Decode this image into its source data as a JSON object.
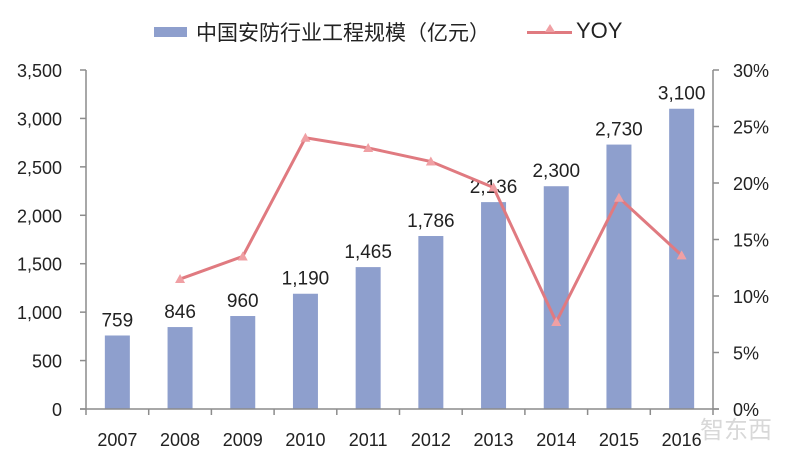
{
  "legend": {
    "bar_label": "中国安防行业工程规模（亿元）",
    "line_label": "YOY"
  },
  "watermark": "智东西",
  "colors": {
    "bar": "#8E9FCD",
    "line": "#E07A80",
    "marker": "#F0A0A4",
    "axis": "#8C8C8C"
  },
  "chart_data": {
    "type": "bar+line",
    "title": "",
    "categories": [
      "2007",
      "2008",
      "2009",
      "2010",
      "2011",
      "2012",
      "2013",
      "2014",
      "2015",
      "2016"
    ],
    "series": [
      {
        "name": "中国安防行业工程规模（亿元）",
        "type": "bar",
        "axis": "left",
        "values": [
          759,
          846,
          960,
          1190,
          1465,
          1786,
          2136,
          2300,
          2730,
          3100
        ],
        "labels": [
          "759",
          "846",
          "960",
          "1,190",
          "1,465",
          "1,786",
          "2,136",
          "2,300",
          "2,730",
          "3,100"
        ]
      },
      {
        "name": "YOY",
        "type": "line",
        "axis": "right",
        "values": [
          null,
          11.5,
          13.5,
          24.0,
          23.1,
          21.9,
          19.6,
          7.7,
          18.7,
          13.6
        ]
      }
    ],
    "left_axis": {
      "ylim": [
        0,
        3500
      ],
      "ticks": [
        "0",
        "500",
        "1,000",
        "1,500",
        "2,000",
        "2,500",
        "3,000",
        "3,500"
      ]
    },
    "right_axis": {
      "ylim": [
        0,
        30
      ],
      "ticks": [
        "0%",
        "5%",
        "10%",
        "15%",
        "20%",
        "25%",
        "30%"
      ]
    },
    "xlabel": "",
    "ylabel": "",
    "legend_position": "top",
    "grid": false
  }
}
